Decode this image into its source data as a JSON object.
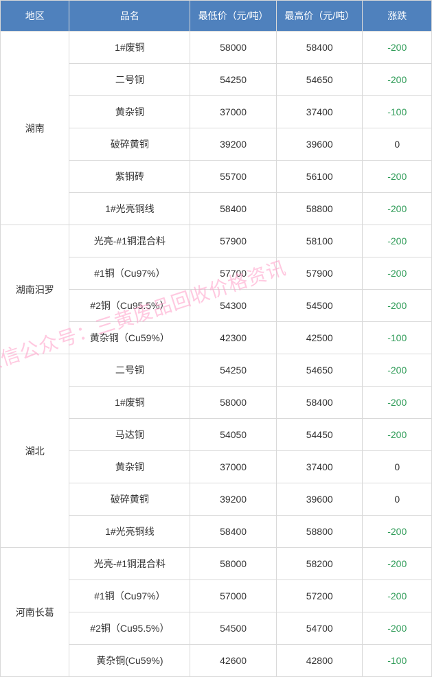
{
  "header": {
    "cols": [
      "地区",
      "品名",
      "最低价（元/吨）",
      "最高价（元/吨）",
      "涨跌"
    ],
    "bg": "#4f81bd",
    "fg": "#ffffff",
    "fontsize": 14
  },
  "col_widths": [
    "16%",
    "28%",
    "20%",
    "20%",
    "16%"
  ],
  "cell_style": {
    "border_color": "#d9d9d9",
    "row_bg": "#ffffff",
    "text_color": "#333333",
    "fontsize": 14,
    "neg_color": "#2e9b57"
  },
  "watermark": {
    "text": "微信公众号：三黄废品回收价格资讯",
    "color": "#ff9ec8",
    "fontsize": 28,
    "rotate_deg": -18
  },
  "groups": [
    {
      "region": "湖南",
      "rows": [
        {
          "name": "1#废铜",
          "low": "58000",
          "high": "58400",
          "chg": "-200"
        },
        {
          "name": "二号铜",
          "low": "54250",
          "high": "54650",
          "chg": "-200"
        },
        {
          "name": "黄杂铜",
          "low": "37000",
          "high": "37400",
          "chg": "-100"
        },
        {
          "name": "破碎黄铜",
          "low": "39200",
          "high": "39600",
          "chg": "0"
        },
        {
          "name": "紫铜砖",
          "low": "55700",
          "high": "56100",
          "chg": "-200"
        },
        {
          "name": "1#光亮铜线",
          "low": "58400",
          "high": "58800",
          "chg": "-200"
        }
      ]
    },
    {
      "region": "湖南汨罗",
      "rows": [
        {
          "name": "光亮-#1铜混合料",
          "low": "57900",
          "high": "58100",
          "chg": "-200"
        },
        {
          "name": "#1铜（Cu97%）",
          "low": "57700",
          "high": "57900",
          "chg": "-200"
        },
        {
          "name": "#2铜（Cu95.5%）",
          "low": "54300",
          "high": "54500",
          "chg": "-200"
        },
        {
          "name": "黄杂铜（Cu59%）",
          "low": "42300",
          "high": "42500",
          "chg": "-100"
        }
      ]
    },
    {
      "region": "湖北",
      "rows": [
        {
          "name": "二号铜",
          "low": "54250",
          "high": "54650",
          "chg": "-200"
        },
        {
          "name": "1#废铜",
          "low": "58000",
          "high": "58400",
          "chg": "-200"
        },
        {
          "name": "马达铜",
          "low": "54050",
          "high": "54450",
          "chg": "-200"
        },
        {
          "name": "黄杂铜",
          "low": "37000",
          "high": "37400",
          "chg": "0"
        },
        {
          "name": "破碎黄铜",
          "low": "39200",
          "high": "39600",
          "chg": "0"
        },
        {
          "name": "1#光亮铜线",
          "low": "58400",
          "high": "58800",
          "chg": "-200"
        }
      ]
    },
    {
      "region": "河南长葛",
      "rows": [
        {
          "name": "光亮-#1铜混合料",
          "low": "58000",
          "high": "58200",
          "chg": "-200"
        },
        {
          "name": "#1铜（Cu97%）",
          "low": "57000",
          "high": "57200",
          "chg": "-200"
        },
        {
          "name": "#2铜（Cu95.5%）",
          "low": "54500",
          "high": "54700",
          "chg": "-200"
        },
        {
          "name": "黄杂铜(Cu59%)",
          "low": "42600",
          "high": "42800",
          "chg": "-100"
        }
      ]
    }
  ]
}
